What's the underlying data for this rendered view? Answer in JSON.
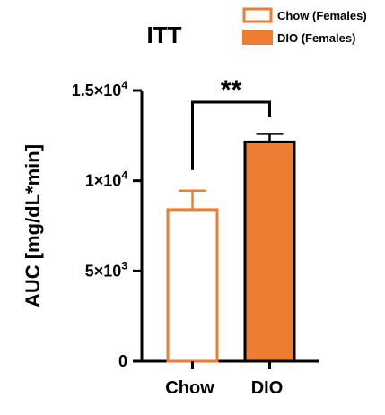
{
  "chart_data": {
    "type": "bar",
    "title": "ITT",
    "xlabel": "",
    "ylabel": "AUC [mg/dL*min]",
    "ylim": [
      0,
      15000
    ],
    "yticks": [
      {
        "value": 0,
        "base": "0",
        "exp": ""
      },
      {
        "value": 5000,
        "base": "5×10",
        "exp": "3"
      },
      {
        "value": 10000,
        "base": "1×10",
        "exp": "4"
      },
      {
        "value": 15000,
        "base": "1.5×10",
        "exp": "4"
      }
    ],
    "categories": [
      "Chow",
      "DIO"
    ],
    "values": [
      8400,
      12150
    ],
    "errors": [
      1050,
      450
    ],
    "legend": [
      "Chow (Females)",
      "DIO (Females)"
    ],
    "legend_position": "top-right",
    "significance": "**",
    "colors": {
      "chow_fill": "#ffffff",
      "chow_stroke": "#ed7d31",
      "dio_fill": "#ed7d31",
      "dio_stroke": "#000000",
      "axis": "#000000"
    }
  }
}
